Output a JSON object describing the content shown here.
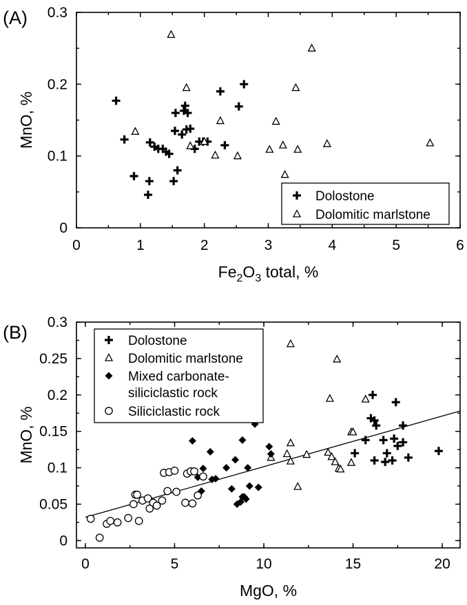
{
  "chart_data": [
    {
      "type": "scatter",
      "panel_label": "(A)",
      "xlabel": {
        "base": "Fe",
        "sub1": "2",
        "mid": "O",
        "sub2": "3",
        "rest": " total, %"
      },
      "ylabel": "MnO, %",
      "xlim": [
        0,
        6
      ],
      "ylim": [
        0,
        0.3
      ],
      "xticks": [
        "0",
        "1",
        "2",
        "3",
        "4",
        "5",
        "6"
      ],
      "yticks": [
        "0",
        "0.1",
        "0.2",
        "0.3"
      ],
      "legend": {
        "position": "bottom-right",
        "entries": [
          "Dolostone",
          "Dolomitic marlstone"
        ]
      },
      "series": [
        {
          "name": "Dolostone",
          "marker": "plus",
          "points": [
            [
              0.62,
              0.177
            ],
            [
              0.75,
              0.123
            ],
            [
              0.9,
              0.072
            ],
            [
              1.12,
              0.046
            ],
            [
              1.14,
              0.065
            ],
            [
              1.15,
              0.119
            ],
            [
              1.22,
              0.113
            ],
            [
              1.28,
              0.11
            ],
            [
              1.35,
              0.11
            ],
            [
              1.4,
              0.106
            ],
            [
              1.45,
              0.103
            ],
            [
              1.52,
              0.065
            ],
            [
              1.54,
              0.135
            ],
            [
              1.55,
              0.16
            ],
            [
              1.58,
              0.08
            ],
            [
              1.65,
              0.13
            ],
            [
              1.68,
              0.163
            ],
            [
              1.7,
              0.17
            ],
            [
              1.72,
              0.137
            ],
            [
              1.74,
              0.16
            ],
            [
              1.78,
              0.138
            ],
            [
              1.85,
              0.11
            ],
            [
              1.92,
              0.12
            ],
            [
              1.98,
              0.12
            ],
            [
              2.05,
              0.12
            ],
            [
              2.25,
              0.19
            ],
            [
              2.32,
              0.115
            ],
            [
              2.54,
              0.169
            ],
            [
              2.62,
              0.2
            ]
          ]
        },
        {
          "name": "Dolomitic marlstone",
          "marker": "triangle",
          "points": [
            [
              0.92,
              0.134
            ],
            [
              1.48,
              0.269
            ],
            [
              1.72,
              0.195
            ],
            [
              1.78,
              0.114
            ],
            [
              2.0,
              0.12
            ],
            [
              2.17,
              0.101
            ],
            [
              2.25,
              0.149
            ],
            [
              2.52,
              0.1
            ],
            [
              3.02,
              0.109
            ],
            [
              3.12,
              0.148
            ],
            [
              3.23,
              0.115
            ],
            [
              3.26,
              0.074
            ],
            [
              3.43,
              0.195
            ],
            [
              3.46,
              0.109
            ],
            [
              3.68,
              0.25
            ],
            [
              3.92,
              0.117
            ],
            [
              5.53,
              0.118
            ]
          ]
        }
      ]
    },
    {
      "type": "scatter",
      "panel_label": "(B)",
      "xlabel": "MgO, %",
      "ylabel": "MnO, %",
      "xlim": [
        -0.5,
        21
      ],
      "ylim": [
        -0.01,
        0.3
      ],
      "xticks": [
        "0",
        "5",
        "10",
        "15",
        "20"
      ],
      "yticks": [
        "0",
        "0.05",
        "0.1",
        "0.15",
        "0.2",
        "0.25",
        "0.3"
      ],
      "legend": {
        "position": "top-left",
        "entries": [
          "Dolostone",
          "Dolomitic marlstone",
          "Mixed carbonate-",
          "siliciclastic rock",
          "Siliciclastic rock"
        ]
      },
      "trendline": {
        "x": [
          0,
          21
        ],
        "y": [
          0.032,
          0.178
        ]
      },
      "series": [
        {
          "name": "Dolostone",
          "marker": "plus",
          "points": [
            [
              15.1,
              0.12
            ],
            [
              15.7,
              0.138
            ],
            [
              16.0,
              0.168
            ],
            [
              16.1,
              0.2
            ],
            [
              16.2,
              0.165
            ],
            [
              16.2,
              0.11
            ],
            [
              16.3,
              0.158
            ],
            [
              16.7,
              0.138
            ],
            [
              16.8,
              0.108
            ],
            [
              16.9,
              0.12
            ],
            [
              17.2,
              0.11
            ],
            [
              17.3,
              0.14
            ],
            [
              17.4,
              0.19
            ],
            [
              17.5,
              0.13
            ],
            [
              17.8,
              0.158
            ],
            [
              17.8,
              0.135
            ],
            [
              18.1,
              0.114
            ],
            [
              19.8,
              0.123
            ]
          ]
        },
        {
          "name": "Dolomitic marlstone",
          "marker": "triangle",
          "points": [
            [
              10.4,
              0.114
            ],
            [
              11.3,
              0.119
            ],
            [
              11.5,
              0.27
            ],
            [
              11.5,
              0.134
            ],
            [
              11.5,
              0.109
            ],
            [
              11.9,
              0.074
            ],
            [
              12.4,
              0.118
            ],
            [
              13.6,
              0.121
            ],
            [
              13.7,
              0.195
            ],
            [
              13.8,
              0.115
            ],
            [
              14.0,
              0.108
            ],
            [
              14.1,
              0.249
            ],
            [
              14.2,
              0.099
            ],
            [
              14.3,
              0.098
            ],
            [
              14.9,
              0.107
            ],
            [
              14.9,
              0.149
            ],
            [
              15.0,
              0.149
            ],
            [
              15.7,
              0.194
            ]
          ]
        },
        {
          "name": "Mixed carbonate-siliciclastic rock",
          "marker": "diamond",
          "points": [
            [
              6.0,
              0.137
            ],
            [
              6.3,
              0.087
            ],
            [
              6.5,
              0.068
            ],
            [
              6.6,
              0.099
            ],
            [
              7.0,
              0.122
            ],
            [
              7.1,
              0.084
            ],
            [
              7.3,
              0.085
            ],
            [
              7.9,
              0.1
            ],
            [
              8.2,
              0.071
            ],
            [
              8.4,
              0.111
            ],
            [
              8.5,
              0.05
            ],
            [
              8.7,
              0.053
            ],
            [
              8.8,
              0.06
            ],
            [
              8.8,
              0.138
            ],
            [
              8.9,
              0.06
            ],
            [
              9.0,
              0.057
            ],
            [
              9.1,
              0.1
            ],
            [
              9.2,
              0.075
            ],
            [
              9.5,
              0.16
            ],
            [
              9.7,
              0.073
            ],
            [
              10.3,
              0.129
            ],
            [
              10.4,
              0.119
            ]
          ]
        },
        {
          "name": "Siliciclastic rock",
          "marker": "circle",
          "points": [
            [
              0.3,
              0.03
            ],
            [
              0.8,
              0.004
            ],
            [
              1.2,
              0.023
            ],
            [
              1.4,
              0.027
            ],
            [
              1.8,
              0.025
            ],
            [
              2.4,
              0.031
            ],
            [
              2.7,
              0.05
            ],
            [
              2.8,
              0.063
            ],
            [
              2.9,
              0.063
            ],
            [
              3.0,
              0.027
            ],
            [
              3.2,
              0.055
            ],
            [
              3.5,
              0.058
            ],
            [
              3.6,
              0.044
            ],
            [
              3.8,
              0.052
            ],
            [
              4.0,
              0.048
            ],
            [
              4.3,
              0.055
            ],
            [
              4.4,
              0.093
            ],
            [
              4.6,
              0.068
            ],
            [
              4.7,
              0.094
            ],
            [
              5.0,
              0.096
            ],
            [
              5.1,
              0.067
            ],
            [
              5.6,
              0.052
            ],
            [
              5.7,
              0.092
            ],
            [
              5.9,
              0.095
            ],
            [
              6.0,
              0.051
            ],
            [
              6.1,
              0.095
            ],
            [
              6.3,
              0.062
            ],
            [
              6.6,
              0.088
            ]
          ]
        }
      ]
    }
  ]
}
